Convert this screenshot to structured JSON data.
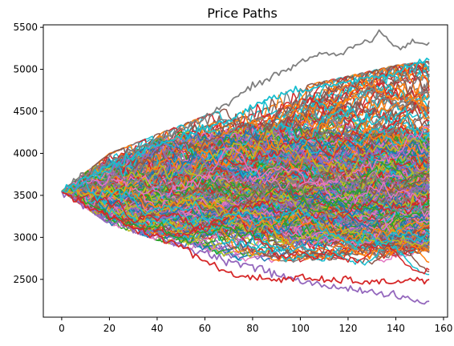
{
  "chart_data": {
    "type": "line",
    "title": "Price Paths",
    "xlabel": "",
    "ylabel": "",
    "xlim": [
      -7.7,
      161.7
    ],
    "ylim": [
      2050,
      5530
    ],
    "x_ticks": [
      0,
      20,
      40,
      60,
      80,
      100,
      120,
      140,
      160
    ],
    "y_ticks": [
      2500,
      3000,
      3500,
      4000,
      4500,
      5000,
      5500
    ],
    "start_value": 3550,
    "num_steps": 154,
    "num_paths_approx": 500,
    "grid": false,
    "legend": "none",
    "series_colors": [
      "#1f77b4",
      "#ff7f0e",
      "#2ca02c",
      "#d62728",
      "#9467bd",
      "#8c564b",
      "#e377c2",
      "#7f7f7f",
      "#bcbd22",
      "#17becf"
    ],
    "envelope": {
      "x": [
        0,
        20,
        40,
        60,
        80,
        100,
        120,
        140,
        154
      ],
      "upper": [
        3550,
        4000,
        4230,
        4450,
        4650,
        4800,
        4920,
        5050,
        5100
      ],
      "lower": [
        3550,
        3150,
        2960,
        2800,
        2700,
        2620,
        2560,
        2520,
        2500
      ]
    },
    "highlighted_paths": [
      {
        "color": "#7f7f7f",
        "x": [
          0,
          10,
          20,
          30,
          40,
          50,
          60,
          65,
          70,
          75,
          80,
          85,
          90,
          95,
          100,
          105,
          110,
          115,
          120,
          125,
          130,
          133,
          136,
          140,
          145,
          150,
          154
        ],
        "values": [
          3550,
          3750,
          3900,
          4050,
          4150,
          4280,
          4420,
          4520,
          4600,
          4700,
          4800,
          4850,
          4950,
          5000,
          5080,
          5150,
          5200,
          5150,
          5250,
          5300,
          5350,
          5450,
          5380,
          5250,
          5300,
          5330,
          5320
        ]
      },
      {
        "color": "#9467bd",
        "x": [
          0,
          10,
          20,
          30,
          40,
          50,
          60,
          70,
          80,
          90,
          100,
          110,
          120,
          130,
          140,
          145,
          150,
          154
        ],
        "values": [
          3550,
          3350,
          3200,
          3100,
          3000,
          2900,
          2820,
          2720,
          2650,
          2560,
          2480,
          2420,
          2400,
          2350,
          2300,
          2270,
          2220,
          2240
        ]
      },
      {
        "color": "#d62728",
        "x": [
          0,
          10,
          20,
          30,
          40,
          50,
          60,
          70,
          80,
          90,
          100,
          110,
          120,
          130,
          140,
          154
        ],
        "values": [
          3550,
          3380,
          3250,
          3120,
          3010,
          2900,
          2720,
          2560,
          2520,
          2500,
          2520,
          2480,
          2500,
          2450,
          2480,
          2500
        ]
      },
      {
        "color": "#17becf",
        "x": [
          0,
          10,
          20,
          30,
          40,
          50,
          60,
          70,
          80,
          90,
          100,
          110,
          120,
          130,
          140,
          150,
          154
        ],
        "values": [
          3550,
          3700,
          3850,
          3950,
          4100,
          4200,
          4300,
          4400,
          4550,
          4680,
          4750,
          4800,
          4850,
          4900,
          4950,
          5100,
          5110
        ]
      }
    ]
  }
}
